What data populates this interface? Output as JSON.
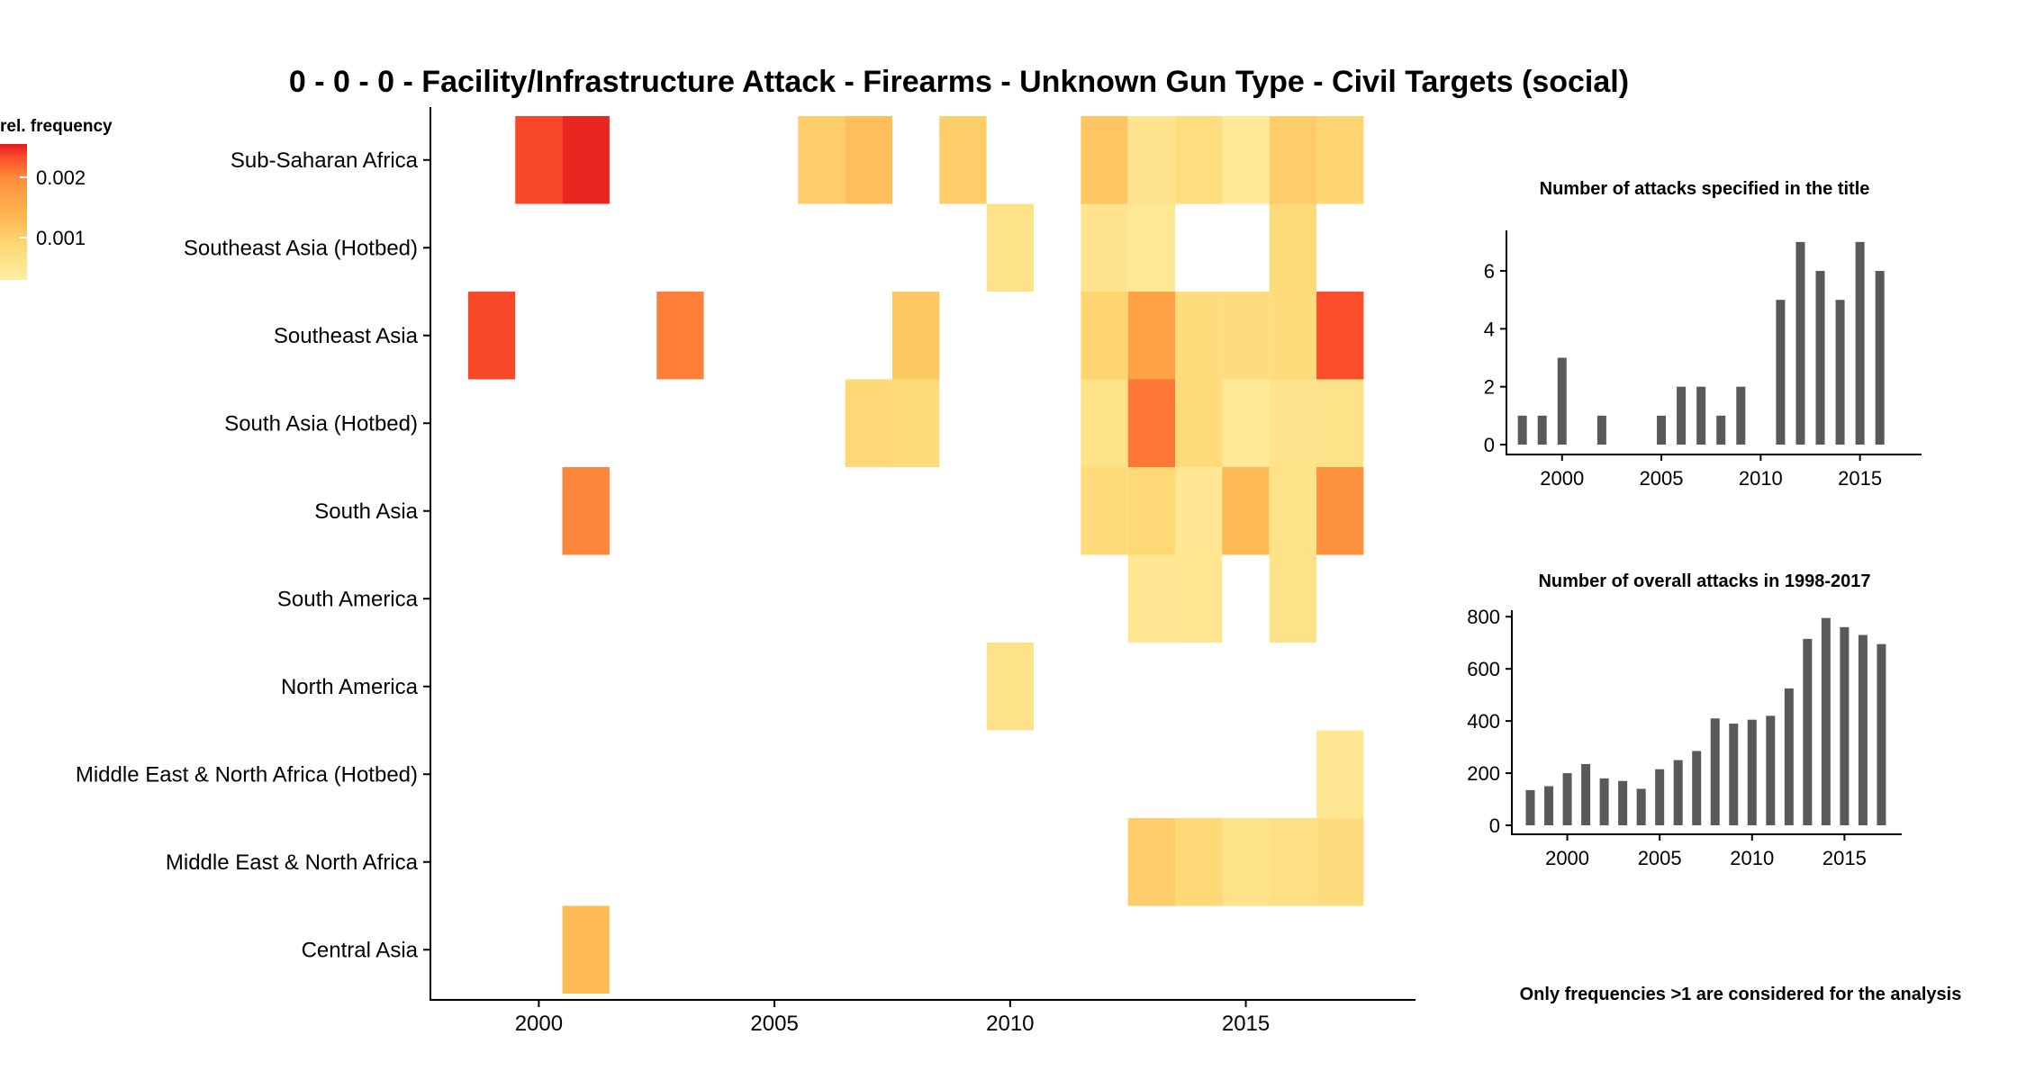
{
  "chart_data": [
    {
      "type": "heatmap",
      "title": "0 - 0 - 0 - Facility/Infrastructure Attack - Firearms - Unknown Gun Type - Civil Targets (social)",
      "x_ticks": [
        2000,
        2005,
        2010,
        2015
      ],
      "xlim": [
        1997.7,
        2018.6
      ],
      "y_categories": [
        "Sub-Saharan Africa",
        "Southeast Asia (Hotbed)",
        "Southeast Asia",
        "South Asia (Hotbed)",
        "South Asia",
        "South America",
        "North America",
        "Middle East & North Africa (Hotbed)",
        "Middle East & North Africa",
        "Central Asia"
      ],
      "legend": {
        "title": "rel. frequency",
        "ticks": [
          {
            "label": "0.002",
            "value": 0.002
          },
          {
            "label": "0.001",
            "value": 0.001
          }
        ],
        "range": [
          0.0003,
          0.00255
        ],
        "colors": [
          "#ffeda0",
          "#fed976",
          "#feb24c",
          "#fd8d3c",
          "#fc4e2a",
          "#e31a1c"
        ]
      },
      "cells": [
        {
          "region": "Sub-Saharan Africa",
          "year": 2000,
          "value": 0.00215
        },
        {
          "region": "Sub-Saharan Africa",
          "year": 2001,
          "value": 0.00245
        },
        {
          "region": "Sub-Saharan Africa",
          "year": 2006,
          "value": 0.0009
        },
        {
          "region": "Sub-Saharan Africa",
          "year": 2007,
          "value": 0.00105
        },
        {
          "region": "Sub-Saharan Africa",
          "year": 2009,
          "value": 0.0009
        },
        {
          "region": "Sub-Saharan Africa",
          "year": 2012,
          "value": 0.00098
        },
        {
          "region": "Sub-Saharan Africa",
          "year": 2013,
          "value": 0.0005
        },
        {
          "region": "Sub-Saharan Africa",
          "year": 2014,
          "value": 0.00065
        },
        {
          "region": "Sub-Saharan Africa",
          "year": 2015,
          "value": 0.0004
        },
        {
          "region": "Sub-Saharan Africa",
          "year": 2016,
          "value": 0.0009
        },
        {
          "region": "Sub-Saharan Africa",
          "year": 2017,
          "value": 0.0008
        },
        {
          "region": "Southeast Asia (Hotbed)",
          "year": 2010,
          "value": 0.00055
        },
        {
          "region": "Southeast Asia (Hotbed)",
          "year": 2012,
          "value": 0.0005
        },
        {
          "region": "Southeast Asia (Hotbed)",
          "year": 2013,
          "value": 0.00042
        },
        {
          "region": "Southeast Asia (Hotbed)",
          "year": 2016,
          "value": 0.00072
        },
        {
          "region": "Southeast Asia",
          "year": 1999,
          "value": 0.00215
        },
        {
          "region": "Southeast Asia",
          "year": 2003,
          "value": 0.00175
        },
        {
          "region": "Southeast Asia",
          "year": 2008,
          "value": 0.00095
        },
        {
          "region": "Southeast Asia",
          "year": 2012,
          "value": 0.0008
        },
        {
          "region": "Southeast Asia",
          "year": 2013,
          "value": 0.0014
        },
        {
          "region": "Southeast Asia",
          "year": 2014,
          "value": 0.0007
        },
        {
          "region": "Southeast Asia",
          "year": 2015,
          "value": 0.00068
        },
        {
          "region": "Southeast Asia",
          "year": 2016,
          "value": 0.0007
        },
        {
          "region": "Southeast Asia",
          "year": 2017,
          "value": 0.0021
        },
        {
          "region": "South Asia (Hotbed)",
          "year": 2007,
          "value": 0.00075
        },
        {
          "region": "South Asia (Hotbed)",
          "year": 2008,
          "value": 0.00072
        },
        {
          "region": "South Asia (Hotbed)",
          "year": 2012,
          "value": 0.00052
        },
        {
          "region": "South Asia (Hotbed)",
          "year": 2013,
          "value": 0.0018
        },
        {
          "region": "South Asia (Hotbed)",
          "year": 2014,
          "value": 0.0007
        },
        {
          "region": "South Asia (Hotbed)",
          "year": 2015,
          "value": 0.00042
        },
        {
          "region": "South Asia (Hotbed)",
          "year": 2016,
          "value": 0.0005
        },
        {
          "region": "South Asia (Hotbed)",
          "year": 2017,
          "value": 0.00055
        },
        {
          "region": "South Asia",
          "year": 2001,
          "value": 0.0017
        },
        {
          "region": "South Asia",
          "year": 2012,
          "value": 0.0007
        },
        {
          "region": "South Asia",
          "year": 2013,
          "value": 0.00075
        },
        {
          "region": "South Asia",
          "year": 2014,
          "value": 0.00045
        },
        {
          "region": "South Asia",
          "year": 2015,
          "value": 0.0011
        },
        {
          "region": "South Asia",
          "year": 2016,
          "value": 0.00055
        },
        {
          "region": "South Asia",
          "year": 2017,
          "value": 0.0016
        },
        {
          "region": "South America",
          "year": 2013,
          "value": 0.00045
        },
        {
          "region": "South America",
          "year": 2014,
          "value": 0.00048
        },
        {
          "region": "South America",
          "year": 2016,
          "value": 0.00055
        },
        {
          "region": "North America",
          "year": 2010,
          "value": 0.00055
        },
        {
          "region": "Middle East & North Africa (Hotbed)",
          "year": 2017,
          "value": 0.00045
        },
        {
          "region": "Middle East & North Africa",
          "year": 2013,
          "value": 0.0009
        },
        {
          "region": "Middle East & North Africa",
          "year": 2014,
          "value": 0.00075
        },
        {
          "region": "Middle East & North Africa",
          "year": 2015,
          "value": 0.00055
        },
        {
          "region": "Middle East & North Africa",
          "year": 2016,
          "value": 0.0006
        },
        {
          "region": "Middle East & North Africa",
          "year": 2017,
          "value": 0.00068
        },
        {
          "region": "Central Asia",
          "year": 2001,
          "value": 0.0011
        }
      ]
    },
    {
      "type": "bar",
      "title": "Number of attacks specified in the title",
      "x": [
        1998,
        1999,
        2000,
        2001,
        2002,
        2003,
        2004,
        2005,
        2006,
        2007,
        2008,
        2009,
        2010,
        2011,
        2012,
        2013,
        2014,
        2015,
        2016,
        2017
      ],
      "values": [
        1,
        1,
        3,
        0,
        1,
        0,
        0,
        1,
        2,
        2,
        1,
        2,
        0,
        5,
        7,
        6,
        5,
        7,
        6,
        0
      ],
      "x_ticks": [
        2000,
        2005,
        2010,
        2015
      ],
      "y_ticks": [
        0,
        2,
        4,
        6
      ],
      "xlim": [
        1997.2,
        2018.1
      ],
      "ylim": [
        0,
        7.4
      ],
      "bar_color": "#595959"
    },
    {
      "type": "bar",
      "title": "Number of overall attacks in 1998-2017",
      "x": [
        1998,
        1999,
        2000,
        2001,
        2002,
        2003,
        2004,
        2005,
        2006,
        2007,
        2008,
        2009,
        2010,
        2011,
        2012,
        2013,
        2014,
        2015,
        2016,
        2017
      ],
      "values": [
        135,
        150,
        200,
        235,
        180,
        170,
        140,
        215,
        250,
        285,
        410,
        390,
        405,
        420,
        525,
        715,
        795,
        760,
        730,
        695
      ],
      "x_ticks": [
        2000,
        2005,
        2010,
        2015
      ],
      "y_ticks": [
        0,
        200,
        400,
        600,
        800
      ],
      "xlim": [
        1997.0,
        2018.1
      ],
      "ylim": [
        0,
        825
      ],
      "bar_color": "#595959"
    }
  ],
  "note": "Only frequencies >1 are considered for the analysis"
}
